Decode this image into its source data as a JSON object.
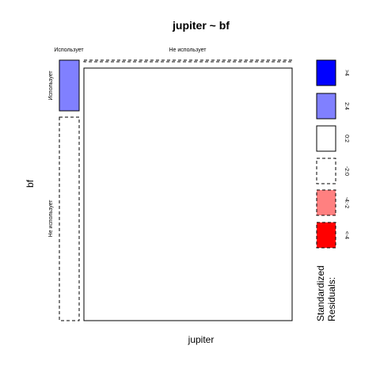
{
  "chart_data": {
    "type": "mosaic",
    "title": "jupiter ~ bf",
    "xlabel": "jupiter",
    "ylabel": "bf",
    "x_levels": [
      "Использует",
      "Не использует"
    ],
    "y_levels": [
      "Использует",
      "Не использует"
    ],
    "cells": [
      {
        "x": "Использует",
        "y": "Использует",
        "x_share": 0.085,
        "y_share": 0.22,
        "residual_class": "2:4"
      },
      {
        "x": "Использует",
        "y": "Не использует",
        "x_share": 0.085,
        "y_share": 0.78,
        "residual_class": "-2:0"
      },
      {
        "x": "Не использует",
        "y": "Использует",
        "x_share": 0.915,
        "y_share": 0.0,
        "residual_class": "-2:0"
      },
      {
        "x": "Не использует",
        "y": "Не использует",
        "x_share": 0.915,
        "y_share": 1.0,
        "residual_class": "0:2"
      }
    ],
    "legend": {
      "title_lines": [
        "Standardized",
        "Residuals:"
      ],
      "entries": [
        {
          "label": ">4",
          "fill": "#0000ff",
          "dashed": false
        },
        {
          "label": "2:4",
          "fill": "#8080ff",
          "dashed": false
        },
        {
          "label": "0:2",
          "fill": "#ffffff",
          "dashed": false
        },
        {
          "label": "-2:0",
          "fill": "#ffffff",
          "dashed": true
        },
        {
          "label": "-4:-2",
          "fill": "#ff8080",
          "dashed": true
        },
        {
          "label": "<-4",
          "fill": "#ff0000",
          "dashed": true
        }
      ]
    },
    "colors": {
      "outline": "#000000"
    }
  }
}
